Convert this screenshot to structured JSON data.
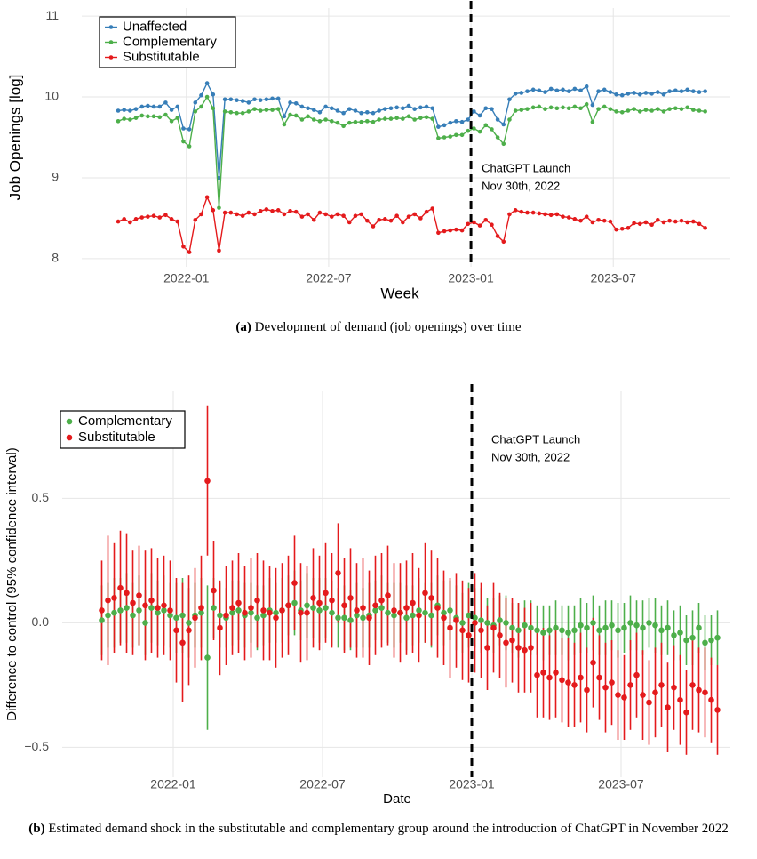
{
  "chart_data": [
    {
      "type": "line",
      "x_label": "Week",
      "y_label": "Job Openings [log]",
      "caption": {
        "label": "(a)",
        "text": "Development of demand (job openings) over time"
      },
      "annotations": [
        "ChatGPT Launch",
        "Nov 30th, 2022"
      ],
      "vline": "2023-01",
      "xlim": [
        "2021-09",
        "2023-11"
      ],
      "xticks": [
        "2022-01",
        "2022-07",
        "2023-01",
        "2023-07"
      ],
      "ylim": [
        7.9,
        11.1
      ],
      "yticks": [
        8,
        9,
        10,
        11
      ],
      "grid": true,
      "legend": "top-left",
      "x": [
        "2021-10",
        "2021-10",
        "2021-10",
        "2021-10",
        "2021-11",
        "2021-11",
        "2021-11",
        "2021-11",
        "2021-12",
        "2021-12",
        "2021-12",
        "2021-12",
        "2022-01",
        "2022-01",
        "2022-01",
        "2022-01",
        "2022-02",
        "2022-02",
        "2022-02",
        "2022-02",
        "2022-03",
        "2022-03",
        "2022-03",
        "2022-03",
        "2022-04",
        "2022-04",
        "2022-04",
        "2022-04",
        "2022-05",
        "2022-05",
        "2022-05",
        "2022-05",
        "2022-06",
        "2022-06",
        "2022-06",
        "2022-06",
        "2022-07",
        "2022-07",
        "2022-07",
        "2022-07",
        "2022-08",
        "2022-08",
        "2022-08",
        "2022-08",
        "2022-09",
        "2022-09",
        "2022-09",
        "2022-09",
        "2022-10",
        "2022-10",
        "2022-10",
        "2022-10",
        "2022-11",
        "2022-11",
        "2022-11",
        "2022-11",
        "2022-12",
        "2022-12",
        "2022-12",
        "2022-12",
        "2023-01",
        "2023-01",
        "2023-01",
        "2023-01",
        "2023-02",
        "2023-02",
        "2023-02",
        "2023-02",
        "2023-03",
        "2023-03",
        "2023-03",
        "2023-03",
        "2023-04",
        "2023-04",
        "2023-04",
        "2023-04",
        "2023-05",
        "2023-05",
        "2023-05",
        "2023-05",
        "2023-06",
        "2023-06",
        "2023-06",
        "2023-06",
        "2023-07",
        "2023-07",
        "2023-07",
        "2023-07",
        "2023-08",
        "2023-08",
        "2023-08",
        "2023-08",
        "2023-09",
        "2023-09",
        "2023-09",
        "2023-09",
        "2023-10",
        "2023-10",
        "2023-10",
        "2023-10"
      ],
      "series": [
        {
          "name": "Unaffected",
          "color": "#377eb8",
          "values": [
            9.83,
            9.84,
            9.83,
            9.85,
            9.88,
            9.89,
            9.88,
            9.88,
            9.93,
            9.84,
            9.88,
            9.61,
            9.6,
            9.93,
            10.02,
            10.17,
            10.03,
            9.0,
            9.97,
            9.97,
            9.96,
            9.95,
            9.93,
            9.97,
            9.96,
            9.97,
            9.98,
            9.98,
            9.76,
            9.93,
            9.92,
            9.88,
            9.86,
            9.84,
            9.81,
            9.88,
            9.86,
            9.83,
            9.8,
            9.85,
            9.83,
            9.8,
            9.81,
            9.8,
            9.83,
            9.85,
            9.86,
            9.87,
            9.86,
            9.89,
            9.85,
            9.87,
            9.88,
            9.86,
            9.63,
            9.65,
            9.68,
            9.7,
            9.69,
            9.72,
            9.82,
            9.77,
            9.86,
            9.85,
            9.72,
            9.66,
            9.97,
            10.04,
            10.05,
            10.07,
            10.09,
            10.08,
            10.06,
            10.1,
            10.08,
            10.09,
            10.07,
            10.1,
            10.08,
            10.13,
            9.9,
            10.07,
            10.09,
            10.06,
            10.03,
            10.02,
            10.04,
            10.05,
            10.03,
            10.05,
            10.04,
            10.06,
            10.03,
            10.07,
            10.08,
            10.07,
            10.09,
            10.07,
            10.06,
            10.07
          ]
        },
        {
          "name": "Complementary",
          "color": "#4daf4a",
          "values": [
            9.7,
            9.73,
            9.72,
            9.74,
            9.77,
            9.76,
            9.76,
            9.75,
            9.78,
            9.7,
            9.74,
            9.45,
            9.39,
            9.82,
            9.88,
            10.0,
            9.86,
            8.63,
            9.82,
            9.81,
            9.8,
            9.8,
            9.82,
            9.85,
            9.83,
            9.84,
            9.84,
            9.85,
            9.66,
            9.78,
            9.77,
            9.72,
            9.76,
            9.72,
            9.7,
            9.72,
            9.7,
            9.68,
            9.64,
            9.68,
            9.69,
            9.69,
            9.7,
            9.69,
            9.72,
            9.73,
            9.73,
            9.74,
            9.73,
            9.76,
            9.72,
            9.74,
            9.75,
            9.73,
            9.49,
            9.5,
            9.51,
            9.53,
            9.53,
            9.58,
            9.61,
            9.57,
            9.65,
            9.6,
            9.5,
            9.42,
            9.72,
            9.83,
            9.84,
            9.85,
            9.87,
            9.88,
            9.85,
            9.87,
            9.86,
            9.87,
            9.86,
            9.88,
            9.86,
            9.91,
            9.69,
            9.85,
            9.88,
            9.85,
            9.82,
            9.81,
            9.83,
            9.85,
            9.82,
            9.84,
            9.83,
            9.85,
            9.82,
            9.85,
            9.86,
            9.85,
            9.87,
            9.84,
            9.83,
            9.82
          ]
        },
        {
          "name": "Substitutable",
          "color": "#e41a1c",
          "values": [
            8.46,
            8.49,
            8.45,
            8.49,
            8.51,
            8.52,
            8.53,
            8.51,
            8.54,
            8.49,
            8.46,
            8.15,
            8.08,
            8.48,
            8.55,
            8.76,
            8.6,
            8.1,
            8.57,
            8.57,
            8.55,
            8.53,
            8.57,
            8.55,
            8.59,
            8.61,
            8.59,
            8.6,
            8.55,
            8.59,
            8.58,
            8.52,
            8.55,
            8.48,
            8.57,
            8.55,
            8.52,
            8.55,
            8.53,
            8.45,
            8.53,
            8.55,
            8.47,
            8.4,
            8.48,
            8.49,
            8.47,
            8.53,
            8.45,
            8.52,
            8.55,
            8.5,
            8.58,
            8.62,
            8.32,
            8.34,
            8.35,
            8.36,
            8.35,
            8.43,
            8.45,
            8.41,
            8.48,
            8.42,
            8.28,
            8.21,
            8.55,
            8.6,
            8.58,
            8.57,
            8.57,
            8.56,
            8.55,
            8.54,
            8.55,
            8.52,
            8.51,
            8.49,
            8.47,
            8.52,
            8.45,
            8.48,
            8.47,
            8.46,
            8.36,
            8.37,
            8.38,
            8.44,
            8.43,
            8.45,
            8.42,
            8.48,
            8.45,
            8.47,
            8.46,
            8.47,
            8.45,
            8.46,
            8.43,
            8.38
          ]
        }
      ]
    },
    {
      "type": "errorbar",
      "x_label": "Date",
      "y_label": "Difference to control (95% confidence interval)",
      "caption": {
        "label": "(b)",
        "text": "Estimated demand shock in the substitutable and complementary group around the introduction of ChatGPT in November 2022"
      },
      "annotations": [
        "ChatGPT Launch",
        "Nov 30th, 2022"
      ],
      "vline": "2023-01",
      "xlim": [
        "2021-09",
        "2023-11"
      ],
      "xticks": [
        "2022-01",
        "2022-07",
        "2023-01",
        "2023-07"
      ],
      "ylim": [
        -0.62,
        0.93
      ],
      "yticks": [
        {
          "value": -0.5,
          "label": "−0.5"
        },
        {
          "value": 0,
          "label": "0.0"
        },
        0.5
      ],
      "grid": true,
      "legend": "top-left",
      "x": [
        "2021-10",
        "2021-10",
        "2021-10",
        "2021-10",
        "2021-11",
        "2021-11",
        "2021-11",
        "2021-11",
        "2021-12",
        "2021-12",
        "2021-12",
        "2021-12",
        "2022-01",
        "2022-01",
        "2022-01",
        "2022-01",
        "2022-02",
        "2022-02",
        "2022-02",
        "2022-02",
        "2022-03",
        "2022-03",
        "2022-03",
        "2022-03",
        "2022-04",
        "2022-04",
        "2022-04",
        "2022-04",
        "2022-05",
        "2022-05",
        "2022-05",
        "2022-05",
        "2022-06",
        "2022-06",
        "2022-06",
        "2022-06",
        "2022-07",
        "2022-07",
        "2022-07",
        "2022-07",
        "2022-08",
        "2022-08",
        "2022-08",
        "2022-08",
        "2022-09",
        "2022-09",
        "2022-09",
        "2022-09",
        "2022-10",
        "2022-10",
        "2022-10",
        "2022-10",
        "2022-11",
        "2022-11",
        "2022-11",
        "2022-11",
        "2022-12",
        "2022-12",
        "2022-12",
        "2022-12",
        "2023-01",
        "2023-01",
        "2023-01",
        "2023-01",
        "2023-02",
        "2023-02",
        "2023-02",
        "2023-02",
        "2023-03",
        "2023-03",
        "2023-03",
        "2023-03",
        "2023-04",
        "2023-04",
        "2023-04",
        "2023-04",
        "2023-05",
        "2023-05",
        "2023-05",
        "2023-05",
        "2023-06",
        "2023-06",
        "2023-06",
        "2023-06",
        "2023-07",
        "2023-07",
        "2023-07",
        "2023-07",
        "2023-08",
        "2023-08",
        "2023-08",
        "2023-08",
        "2023-09",
        "2023-09",
        "2023-09",
        "2023-09",
        "2023-10",
        "2023-10",
        "2023-10",
        "2023-10"
      ],
      "series": [
        {
          "name": "Complementary",
          "color": "#4daf4a",
          "values": [
            0.01,
            0.03,
            0.04,
            0.05,
            0.06,
            0.03,
            0.05,
            0.0,
            0.06,
            0.04,
            0.05,
            0.03,
            0.02,
            0.03,
            0.0,
            0.03,
            0.04,
            -0.14,
            0.06,
            0.03,
            0.02,
            0.04,
            0.05,
            0.03,
            0.04,
            0.02,
            0.03,
            0.05,
            0.04,
            0.05,
            0.07,
            0.08,
            0.05,
            0.07,
            0.06,
            0.05,
            0.06,
            0.04,
            0.02,
            0.02,
            0.01,
            0.03,
            0.02,
            0.03,
            0.05,
            0.06,
            0.04,
            0.03,
            0.04,
            0.02,
            0.03,
            0.05,
            0.04,
            0.03,
            0.07,
            0.04,
            0.05,
            0.02,
            0.0,
            0.03,
            0.02,
            0.01,
            0.0,
            -0.01,
            0.01,
            0.0,
            -0.02,
            -0.03,
            -0.01,
            -0.02,
            -0.03,
            -0.04,
            -0.03,
            -0.02,
            -0.03,
            -0.04,
            -0.03,
            -0.01,
            -0.02,
            0.0,
            -0.03,
            -0.02,
            -0.01,
            -0.03,
            -0.02,
            0.0,
            -0.01,
            -0.02,
            0.0,
            -0.01,
            -0.03,
            -0.02,
            -0.05,
            -0.04,
            -0.07,
            -0.06,
            -0.02,
            -0.08,
            -0.07,
            -0.06
          ],
          "errors": [
            0.14,
            0.13,
            0.14,
            0.13,
            0.14,
            0.13,
            0.14,
            0.13,
            0.14,
            0.13,
            0.14,
            0.13,
            0.14,
            0.15,
            0.14,
            0.13,
            0.14,
            0.29,
            0.12,
            0.13,
            0.12,
            0.13,
            0.12,
            0.13,
            0.12,
            0.13,
            0.12,
            0.13,
            0.12,
            0.13,
            0.12,
            0.13,
            0.12,
            0.13,
            0.12,
            0.13,
            0.12,
            0.13,
            0.12,
            0.13,
            0.12,
            0.13,
            0.12,
            0.13,
            0.12,
            0.13,
            0.12,
            0.13,
            0.12,
            0.13,
            0.12,
            0.13,
            0.12,
            0.13,
            0.12,
            0.13,
            0.12,
            0.13,
            0.12,
            0.13,
            0.12,
            0.13,
            0.1,
            0.11,
            0.1,
            0.11,
            0.1,
            0.11,
            0.1,
            0.11,
            0.1,
            0.11,
            0.1,
            0.11,
            0.1,
            0.11,
            0.1,
            0.11,
            0.1,
            0.11,
            0.1,
            0.11,
            0.1,
            0.11,
            0.1,
            0.11,
            0.1,
            0.11,
            0.1,
            0.11,
            0.1,
            0.11,
            0.1,
            0.11,
            0.1,
            0.11,
            0.1,
            0.11,
            0.1,
            0.11
          ]
        },
        {
          "name": "Substitutable",
          "color": "#e41a1c",
          "values": [
            0.05,
            0.09,
            0.1,
            0.14,
            0.12,
            0.08,
            0.11,
            0.07,
            0.09,
            0.06,
            0.07,
            0.05,
            -0.03,
            -0.08,
            -0.03,
            0.02,
            0.06,
            0.57,
            0.13,
            -0.02,
            0.03,
            0.06,
            0.08,
            0.04,
            0.06,
            0.09,
            0.05,
            0.04,
            0.02,
            0.05,
            0.07,
            0.16,
            0.04,
            0.04,
            0.1,
            0.08,
            0.12,
            0.09,
            0.2,
            0.07,
            0.1,
            0.05,
            0.06,
            0.02,
            0.07,
            0.09,
            0.11,
            0.05,
            0.04,
            0.06,
            0.08,
            0.03,
            0.12,
            0.1,
            0.06,
            0.02,
            -0.02,
            0.01,
            -0.03,
            -0.05,
            0.0,
            -0.03,
            -0.1,
            -0.02,
            -0.05,
            -0.08,
            -0.07,
            -0.1,
            -0.11,
            -0.1,
            -0.21,
            -0.2,
            -0.22,
            -0.2,
            -0.23,
            -0.24,
            -0.25,
            -0.22,
            -0.27,
            -0.16,
            -0.22,
            -0.26,
            -0.24,
            -0.29,
            -0.3,
            -0.25,
            -0.21,
            -0.29,
            -0.32,
            -0.28,
            -0.25,
            -0.34,
            -0.26,
            -0.31,
            -0.36,
            -0.25,
            -0.27,
            -0.28,
            -0.31,
            -0.35
          ],
          "errors": [
            0.2,
            0.26,
            0.22,
            0.23,
            0.24,
            0.21,
            0.2,
            0.22,
            0.21,
            0.2,
            0.2,
            0.2,
            0.21,
            0.24,
            0.22,
            0.2,
            0.21,
            0.3,
            0.2,
            0.19,
            0.2,
            0.19,
            0.2,
            0.19,
            0.2,
            0.19,
            0.2,
            0.19,
            0.2,
            0.19,
            0.2,
            0.19,
            0.2,
            0.19,
            0.2,
            0.19,
            0.2,
            0.19,
            0.2,
            0.19,
            0.2,
            0.19,
            0.2,
            0.19,
            0.2,
            0.19,
            0.2,
            0.19,
            0.2,
            0.19,
            0.2,
            0.19,
            0.2,
            0.19,
            0.2,
            0.19,
            0.2,
            0.19,
            0.2,
            0.19,
            0.2,
            0.19,
            0.17,
            0.18,
            0.17,
            0.18,
            0.17,
            0.18,
            0.17,
            0.18,
            0.17,
            0.18,
            0.17,
            0.18,
            0.17,
            0.18,
            0.17,
            0.18,
            0.17,
            0.18,
            0.17,
            0.18,
            0.17,
            0.18,
            0.17,
            0.18,
            0.17,
            0.18,
            0.17,
            0.18,
            0.17,
            0.18,
            0.17,
            0.18,
            0.17,
            0.18,
            0.17,
            0.18,
            0.17,
            0.18
          ]
        }
      ]
    }
  ]
}
